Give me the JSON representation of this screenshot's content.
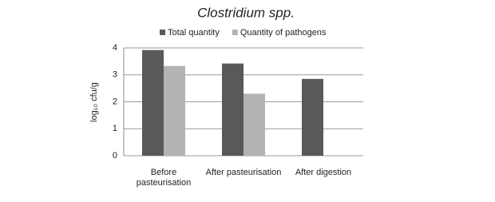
{
  "chart_data": {
    "type": "bar",
    "title": "Clostridium spp.",
    "y_label": "log₁₀ cfu/g",
    "categories": [
      "Before pasteurisation",
      "After pasteurisation",
      "After digestion"
    ],
    "series": [
      {
        "name": "Total quantity",
        "color": "#595959",
        "values": [
          3.92,
          3.42,
          2.85
        ]
      },
      {
        "name": "Quantity of pathogens",
        "color": "#b3b3b3",
        "values": [
          3.33,
          2.3,
          null
        ]
      }
    ],
    "ylim": [
      0,
      4
    ],
    "yticks": [
      0,
      1,
      2,
      3,
      4
    ],
    "grid": true
  }
}
